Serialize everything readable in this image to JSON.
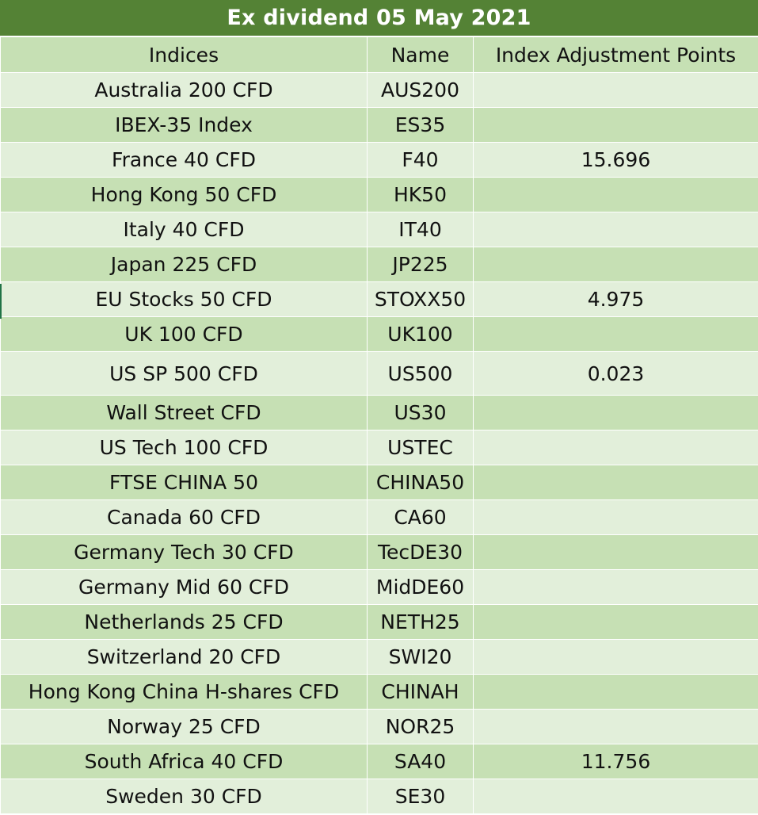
{
  "title": "Ex dividend 05 May 2021",
  "headers": {
    "indices": "Indices",
    "name": "Name",
    "points": "Index Adjustment Points"
  },
  "rows": [
    {
      "index": "Australia 200 CFD",
      "name": "AUS200",
      "points": ""
    },
    {
      "index": "IBEX-35 Index",
      "name": "ES35",
      "points": ""
    },
    {
      "index": "France 40 CFD",
      "name": "F40",
      "points": "15.696"
    },
    {
      "index": "Hong Kong 50 CFD",
      "name": "HK50",
      "points": ""
    },
    {
      "index": "Italy 40 CFD",
      "name": "IT40",
      "points": ""
    },
    {
      "index": "Japan 225 CFD",
      "name": "JP225",
      "points": ""
    },
    {
      "index": "EU Stocks 50 CFD",
      "name": "STOXX50",
      "points": "4.975"
    },
    {
      "index": "UK 100 CFD",
      "name": "UK100",
      "points": ""
    },
    {
      "index": "US SP 500 CFD",
      "name": "US500",
      "points": "0.023"
    },
    {
      "index": "Wall Street CFD",
      "name": "US30",
      "points": ""
    },
    {
      "index": "US Tech 100 CFD",
      "name": "USTEC",
      "points": ""
    },
    {
      "index": "FTSE CHINA 50",
      "name": "CHINA50",
      "points": ""
    },
    {
      "index": "Canada 60 CFD",
      "name": "CA60",
      "points": ""
    },
    {
      "index": "Germany Tech 30 CFD",
      "name": "TecDE30",
      "points": ""
    },
    {
      "index": "Germany Mid 60 CFD",
      "name": "MidDE60",
      "points": ""
    },
    {
      "index": "Netherlands 25 CFD",
      "name": "NETH25",
      "points": ""
    },
    {
      "index": "Switzerland 20 CFD",
      "name": "SWI20",
      "points": ""
    },
    {
      "index": "Hong Kong China H-shares CFD",
      "name": "CHINAH",
      "points": ""
    },
    {
      "index": "Norway 25 CFD",
      "name": "NOR25",
      "points": ""
    },
    {
      "index": "South Africa 40 CFD",
      "name": "SA40",
      "points": "11.756"
    },
    {
      "index": "Sweden 30 CFD",
      "name": "SE30",
      "points": ""
    }
  ]
}
